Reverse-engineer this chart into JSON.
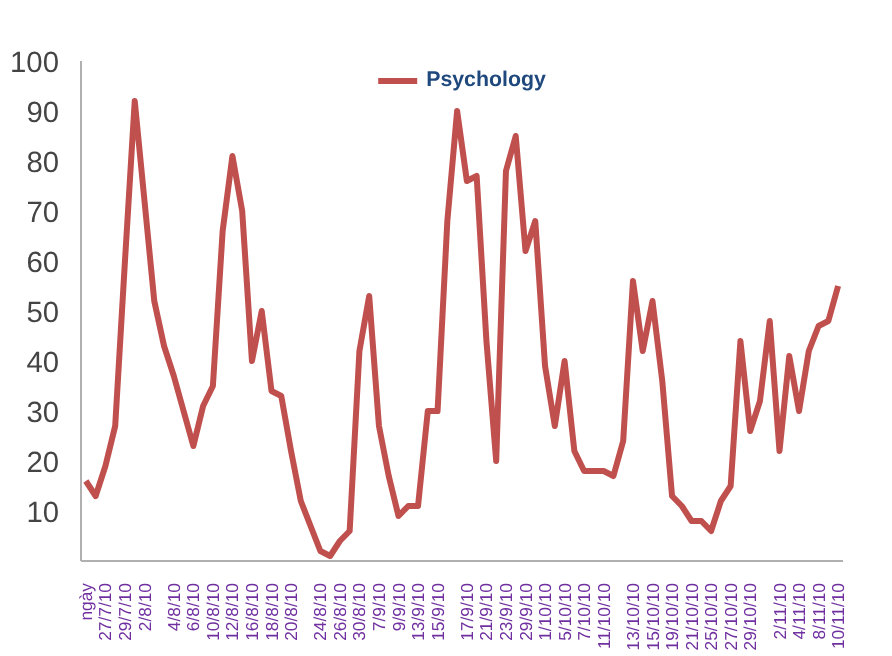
{
  "chart_data": {
    "type": "line",
    "categories": [
      "ngày",
      null,
      "27/7/10",
      null,
      "29/7/10",
      null,
      "2/8/10",
      null,
      null,
      "4/8/10",
      null,
      "6/8/10",
      null,
      "10/8/10",
      null,
      "12/8/10",
      null,
      "16/8/10",
      null,
      "18/8/10",
      null,
      "20/8/10",
      null,
      null,
      "24/8/10",
      null,
      "26/8/10",
      null,
      "30/8/10",
      null,
      "7/9/10",
      null,
      "9/9/10",
      null,
      "13/9/10",
      null,
      "15/9/10",
      null,
      null,
      "17/9/10",
      null,
      "21/9/10",
      null,
      "23/9/10",
      null,
      "29/9/10",
      null,
      "1/10/10",
      null,
      "5/10/10",
      null,
      "7/10/10",
      null,
      "11/10/10",
      null,
      null,
      "13/10/10",
      null,
      "15/10/10",
      null,
      "19/10/10",
      null,
      "21/10/10",
      null,
      "25/10/10",
      null,
      "27/10/10",
      null,
      "29/10/10",
      null,
      null,
      "2/11/10",
      null,
      "4/11/10",
      null,
      "8/11/10",
      null,
      "10/11/10"
    ],
    "series": [
      {
        "name": "Psychology",
        "color": "#c0504d",
        "values": [
          16,
          13,
          19,
          27,
          60,
          92,
          72,
          52,
          43,
          37,
          30,
          23,
          31,
          35,
          66,
          81,
          70,
          40,
          50,
          34,
          33,
          22,
          12,
          7,
          2,
          1,
          4,
          6,
          42,
          53,
          27,
          17,
          9,
          11,
          11,
          30,
          30,
          68,
          90,
          76,
          77,
          44,
          20,
          78,
          85,
          62,
          68,
          39,
          27,
          40,
          22,
          18,
          18,
          18,
          17,
          24,
          56,
          42,
          52,
          36,
          13,
          11,
          8,
          8,
          6,
          12,
          15,
          44,
          26,
          32,
          48,
          22,
          41,
          30,
          42,
          47,
          48,
          55
        ]
      }
    ],
    "ylim": [
      0,
      100
    ],
    "yticks": [
      10,
      20,
      30,
      40,
      50,
      60,
      70,
      80,
      90,
      100
    ],
    "grid": false,
    "legend": "top",
    "line_style": "solid"
  }
}
